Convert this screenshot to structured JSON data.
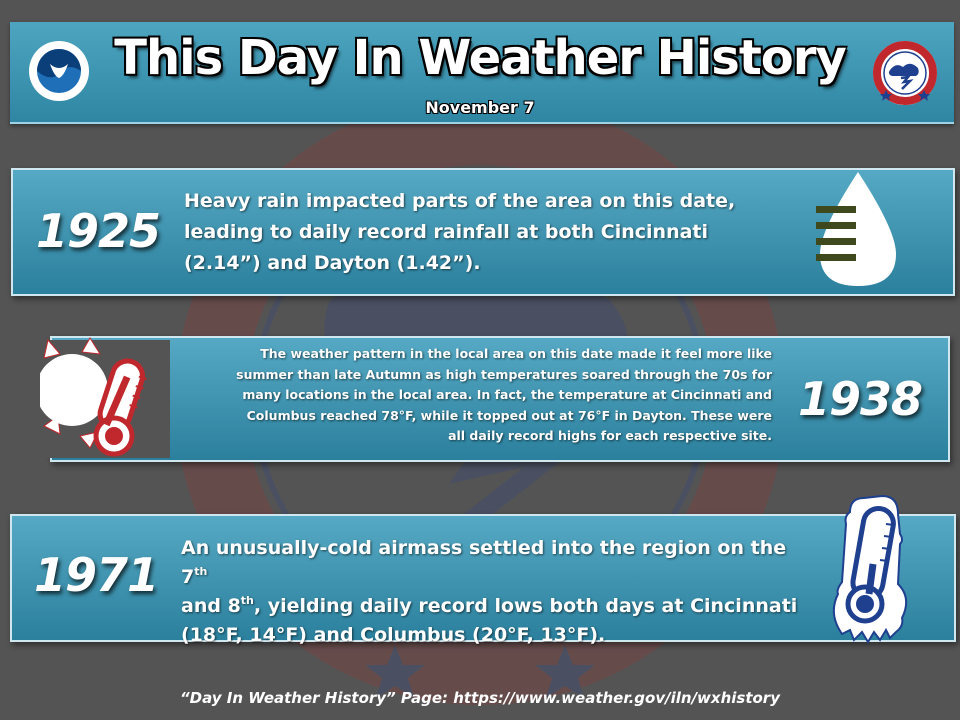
{
  "header": {
    "title": "This Day In Weather History",
    "date": "November 7"
  },
  "logos": {
    "left": "noaa-logo",
    "right": "nws-logo"
  },
  "events": [
    {
      "year": "1925",
      "icon": "raindrop-icon",
      "lines": [
        "Heavy rain impacted parts of the area on this date,",
        "leading to daily record rainfall at both Cincinnati",
        "(2.14”) and Dayton (1.42”)."
      ]
    },
    {
      "year": "1938",
      "icon": "sun-thermometer-icon",
      "lines": [
        "The weather pattern in the local area on this date made it feel more like",
        "summer than late Autumn as high temperatures soared through the 70s for",
        "many locations in the local area. In fact, the temperature at Cincinnati and",
        "Columbus reached 78°F, while it topped out at 76°F in Dayton. These were",
        "all daily record highs for each respective site."
      ]
    },
    {
      "year": "1971",
      "icon": "frozen-thermometer-icon",
      "l1a": "An unusually-cold airmass settled into the region on the 7",
      "l1sup": "th",
      "l2a": "and 8",
      "l2sup": "th",
      "l2b": ", yielding daily record lows both days at Cincinnati",
      "l3": "(18°F, 14°F) and Columbus (20°F, 13°F)."
    }
  ],
  "footer": "“Day In Weather History” Page: https://www.weather.gov/iln/wxhistory",
  "colors": {
    "background": "#545454",
    "panel": "#3f98b5",
    "watermark_red": "#8a3c3c",
    "watermark_blue": "#3a4a7a",
    "icon_green": "#3e4a1e"
  }
}
